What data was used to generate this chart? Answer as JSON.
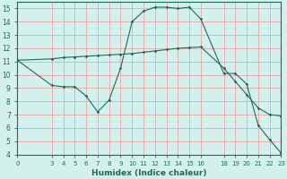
{
  "xlabel": "Humidex (Indice chaleur)",
  "background_color": "#d4f0ec",
  "line_color": "#1a6b5a",
  "grid_color": "#e8b0b0",
  "xlim": [
    0,
    23
  ],
  "ylim": [
    4,
    15.5
  ],
  "xticks": [
    0,
    3,
    4,
    5,
    6,
    7,
    8,
    9,
    10,
    11,
    12,
    13,
    14,
    15,
    16,
    18,
    19,
    20,
    21,
    22,
    23
  ],
  "yticks": [
    4,
    5,
    6,
    7,
    8,
    9,
    10,
    11,
    12,
    13,
    14,
    15
  ],
  "line1_x": [
    0,
    3,
    4,
    5,
    6,
    7,
    8,
    9,
    10,
    11,
    12,
    13,
    14,
    15,
    16,
    18,
    19,
    20,
    21,
    22,
    23
  ],
  "line1_y": [
    11.1,
    11.2,
    11.3,
    11.35,
    11.4,
    11.45,
    11.5,
    11.55,
    11.6,
    11.7,
    11.8,
    11.9,
    12.0,
    12.05,
    12.1,
    10.5,
    9.5,
    8.5,
    7.5,
    7.0,
    6.9
  ],
  "line2_x": [
    0,
    3,
    4,
    5,
    6,
    7,
    8,
    9,
    10,
    11,
    12,
    13,
    14,
    15,
    16,
    18,
    19,
    20,
    21,
    22,
    23
  ],
  "line2_y": [
    11.1,
    9.2,
    9.1,
    9.1,
    8.4,
    7.2,
    8.1,
    10.5,
    14.0,
    14.8,
    15.1,
    15.1,
    15.0,
    15.1,
    14.2,
    10.1,
    10.1,
    9.3,
    6.2,
    5.1,
    4.1
  ]
}
